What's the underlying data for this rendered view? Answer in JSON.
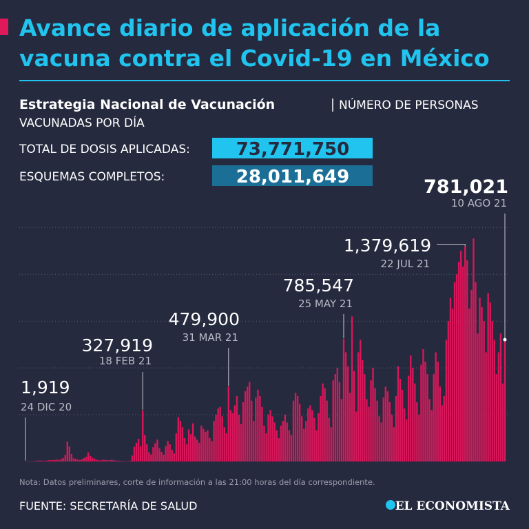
{
  "title": [
    "Avance diario de aplicación de la",
    "vacuna contra el Covid-19 en México"
  ],
  "subtitle_bold": "Estrategia Nacional de Vacunación",
  "subtitle": [
    "NÚMERO DE PERSONAS",
    "VACUNADAS POR DÍA"
  ],
  "stats": [
    {
      "label": "TOTAL DE DOSIS APLICADAS:",
      "value": "73,771,750"
    },
    {
      "label": "ESQUEMAS COMPLETOS:",
      "value": "28,011,649"
    }
  ],
  "note": "Nota: Datos preliminares, corte de información a las 21:00 horas del día correspondiente.",
  "source": "FUENTE: SECRETARÍA DE SALUD",
  "logo": "EL ECONOMISTA",
  "chart_data": {
    "type": "bar",
    "color": "#d8175a",
    "categories": [
      "24 DIC 20",
      null,
      null,
      null,
      null,
      null,
      null,
      null,
      null,
      null,
      null,
      null,
      null,
      null,
      null,
      null,
      null,
      null,
      null,
      null,
      null,
      null,
      null,
      null,
      null,
      null,
      null,
      null,
      null,
      null,
      null,
      null,
      null,
      null,
      null,
      null,
      null,
      null,
      null,
      null,
      null,
      null,
      null,
      null,
      null,
      null,
      null,
      null,
      null,
      null,
      null,
      null,
      null,
      null,
      null,
      null,
      "18 FEB 21",
      null,
      null,
      null,
      null,
      null,
      null,
      null,
      null,
      null,
      null,
      null,
      null,
      null,
      null,
      null,
      null,
      null,
      null,
      null,
      null,
      null,
      null,
      null,
      null,
      null,
      null,
      null,
      null,
      null,
      null,
      null,
      null,
      null,
      null,
      null,
      null,
      null,
      null,
      null,
      null,
      "31 MAR 21",
      null,
      null,
      null,
      null,
      null,
      null,
      null,
      null,
      null,
      null,
      null,
      null,
      null,
      null,
      null,
      null,
      null,
      null,
      null,
      null,
      null,
      null,
      null,
      null,
      null,
      null,
      null,
      null,
      null,
      null,
      null,
      null,
      null,
      null,
      null,
      null,
      null,
      null,
      null,
      null,
      null,
      null,
      null,
      null,
      null,
      null,
      null,
      null,
      null,
      null,
      null,
      null,
      null,
      null,
      "25 MAY 21",
      null,
      null,
      null,
      null,
      null,
      null,
      null,
      null,
      null,
      null,
      null,
      null,
      null,
      null,
      null,
      null,
      null,
      null,
      null,
      null,
      null,
      null,
      null,
      null,
      null,
      null,
      null,
      null,
      null,
      null,
      null,
      null,
      null,
      null,
      null,
      null,
      null,
      null,
      null,
      null,
      null,
      null,
      null,
      null,
      null,
      null,
      null,
      null,
      null,
      null,
      null,
      null,
      null,
      null,
      null,
      null,
      null,
      "22 JUL 21",
      null,
      null,
      null,
      null,
      null,
      null,
      null,
      null,
      null,
      null,
      null,
      null,
      null,
      null,
      null,
      null,
      null,
      null,
      "10 AGO 21"
    ],
    "values": [
      1919,
      2100,
      1800,
      2500,
      3200,
      4100,
      5800,
      6200,
      5100,
      3900,
      5500,
      7800,
      9200,
      8100,
      10200,
      12300,
      9800,
      15600,
      22400,
      41000,
      128000,
      95000,
      48000,
      21000,
      18000,
      12000,
      9500,
      14000,
      22000,
      31000,
      58000,
      36000,
      24000,
      19000,
      11000,
      8000,
      7500,
      12000,
      10500,
      9000,
      8000,
      11000,
      9500,
      6000,
      5200,
      4800,
      3100,
      2500,
      1800,
      2200,
      4500,
      38000,
      95000,
      120000,
      145000,
      98000,
      327919,
      170000,
      110000,
      60000,
      45000,
      92000,
      118000,
      140000,
      85000,
      62000,
      44000,
      98000,
      131000,
      110000,
      76000,
      52000,
      180000,
      285000,
      260000,
      220000,
      150000,
      110000,
      205000,
      175000,
      245000,
      160000,
      140000,
      120000,
      230000,
      210000,
      190000,
      200000,
      150000,
      130000,
      260000,
      300000,
      340000,
      350000,
      290000,
      220000,
      180000,
      479900,
      330000,
      310000,
      360000,
      420000,
      300000,
      240000,
      380000,
      450000,
      480000,
      510000,
      390000,
      260000,
      410000,
      460000,
      420000,
      350000,
      230000,
      180000,
      300000,
      330000,
      290000,
      250000,
      200000,
      150000,
      230000,
      260000,
      300000,
      250000,
      200000,
      170000,
      390000,
      440000,
      420000,
      370000,
      290000,
      210000,
      260000,
      340000,
      360000,
      330000,
      280000,
      200000,
      310000,
      420000,
      500000,
      470000,
      390000,
      280000,
      220000,
      520000,
      560000,
      600000,
      510000,
      400000,
      785547,
      700000,
      610000,
      440000,
      930000,
      580000,
      320000,
      700000,
      780000,
      650000,
      560000,
      400000,
      350000,
      520000,
      600000,
      470000,
      390000,
      290000,
      250000,
      410000,
      480000,
      450000,
      380000,
      300000,
      220000,
      420000,
      610000,
      530000,
      460000,
      340000,
      270000,
      550000,
      680000,
      600000,
      500000,
      380000,
      300000,
      620000,
      720000,
      640000,
      560000,
      400000,
      330000,
      560000,
      700000,
      640000,
      480000,
      360000,
      420000,
      780000,
      900000,
      1050000,
      980000,
      1150000,
      1200000,
      1280000,
      1350000,
      1250000,
      1379619,
      1290000,
      980000,
      1100000,
      1430000,
      1150000,
      820000,
      1050000,
      990000,
      900000,
      700000,
      1080000,
      1020000,
      900000,
      780000,
      560000,
      700000,
      820000,
      500000,
      781021
    ],
    "value_labels": [
      "1,919",
      null,
      null,
      null,
      null,
      null,
      null,
      null,
      null,
      null,
      null,
      null,
      null,
      null,
      null,
      null,
      null,
      null,
      null,
      null,
      null,
      null,
      null,
      null,
      null,
      null,
      null,
      null,
      null,
      null,
      null,
      null,
      null,
      null,
      null,
      null,
      null,
      null,
      null,
      null,
      null,
      null,
      null,
      null,
      null,
      null,
      null,
      null,
      null,
      null,
      null,
      null,
      null,
      null,
      null,
      null,
      "327,919",
      null,
      null,
      null,
      null,
      null,
      null,
      null,
      null,
      null,
      null,
      null,
      null,
      null,
      null,
      null,
      null,
      null,
      null,
      null,
      null,
      null,
      null,
      null,
      null,
      null,
      null,
      null,
      null,
      null,
      null,
      null,
      null,
      null,
      null,
      null,
      null,
      null,
      null,
      null,
      null,
      "479,900",
      null,
      null,
      null,
      null,
      null,
      null,
      null,
      null,
      null,
      null,
      null,
      null,
      null,
      null,
      null,
      null,
      null,
      null,
      null,
      null,
      null,
      null,
      null,
      null,
      null,
      null,
      null,
      null,
      null,
      null,
      null,
      null,
      null,
      null,
      null,
      null,
      null,
      null,
      null,
      null,
      null,
      null,
      null,
      null,
      null,
      null,
      null,
      null,
      null,
      null,
      null,
      null,
      null,
      null,
      "785,547",
      null,
      null,
      null,
      null,
      null,
      null,
      null,
      null,
      null,
      null,
      null,
      null,
      null,
      null,
      null,
      null,
      null,
      null,
      null,
      null,
      null,
      null,
      null,
      null,
      null,
      null,
      null,
      null,
      null,
      null,
      null,
      null,
      null,
      null,
      null,
      null,
      null,
      null,
      null,
      null,
      null,
      null,
      null,
      null,
      null,
      null,
      null,
      null,
      null,
      null,
      null,
      null,
      null,
      null,
      null,
      null,
      null,
      "1,379,619",
      null,
      null,
      null,
      null,
      null,
      null,
      null,
      null,
      null,
      null,
      null,
      null,
      null,
      null,
      null,
      null,
      null,
      null,
      "781,021"
    ],
    "ylim": [
      0,
      1550000
    ],
    "yticks": [
      300000,
      600000,
      900000,
      1200000,
      1500000
    ],
    "grid": true
  }
}
